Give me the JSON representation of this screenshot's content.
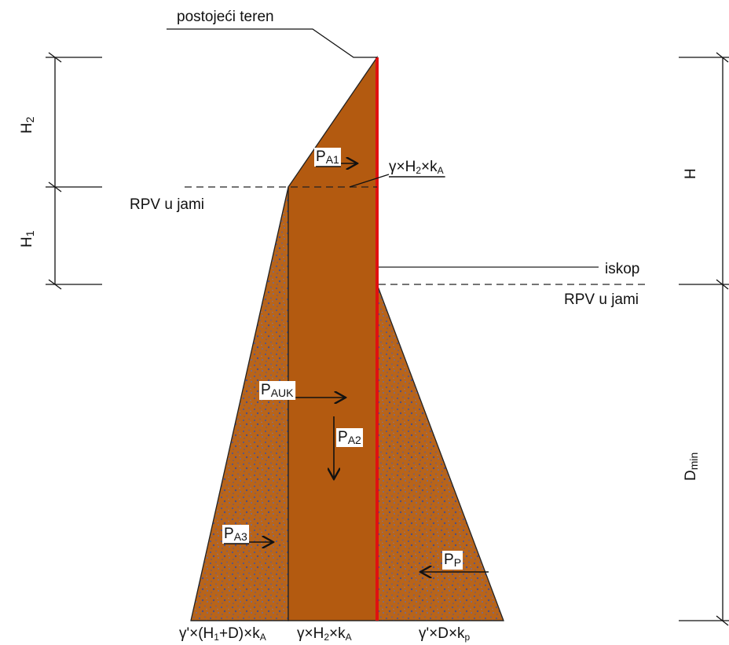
{
  "terrain": "postojeći teren",
  "water_left": "RPV u jami",
  "water_right": "RPV u jami",
  "excavation": "iskop",
  "dimensions": {
    "H2": [
      "H",
      "2"
    ],
    "H1": [
      "H",
      "1"
    ],
    "H": [
      "H"
    ],
    "Dmin": [
      "D",
      "min"
    ]
  },
  "forces": {
    "PA1": [
      "P",
      "A1"
    ],
    "PAUK": [
      "P",
      "AUK"
    ],
    "PA2": [
      "P",
      "A2"
    ],
    "PA3": [
      "P",
      "A3"
    ],
    "PP": [
      "P",
      "P"
    ]
  },
  "stresses": {
    "top": [
      "γ×H",
      "2",
      "×k",
      "A"
    ],
    "bottom_left": [
      "γ'×(H",
      "1",
      "+D)×k",
      "A"
    ],
    "bottom_middle": [
      "γ×H",
      "2",
      "×k",
      "A"
    ],
    "bottom_right": [
      "γ'×D×k",
      "p"
    ]
  }
}
